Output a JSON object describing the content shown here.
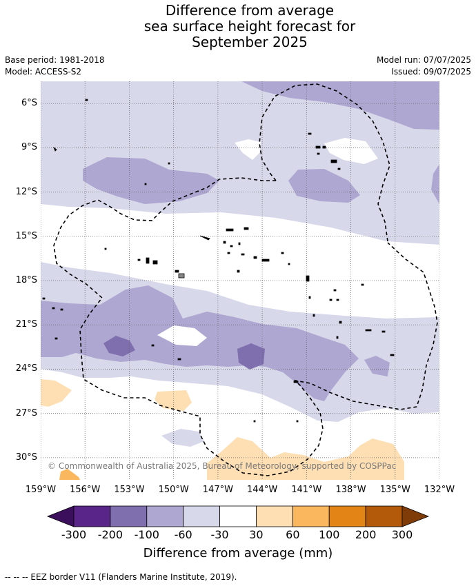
{
  "title": {
    "line1": "Difference from average",
    "line2": "sea surface height forecast for",
    "line3": "September 2025"
  },
  "meta": {
    "base_period": "Base period: 1981-2018",
    "model": "Model: ACCESS-S2",
    "model_run": "Model run: 07/07/2025",
    "issued": "Issued: 09/07/2025"
  },
  "map": {
    "lat_labels": [
      "6°S",
      "9°S",
      "12°S",
      "15°S",
      "18°S",
      "21°S",
      "24°S",
      "27°S",
      "30°S"
    ],
    "lon_labels": [
      "159°W",
      "156°W",
      "153°W",
      "150°W",
      "147°W",
      "144°W",
      "141°W",
      "138°W",
      "135°W",
      "132°W"
    ],
    "copyright": "© Commonwealth of Australia 2025, Bureau of Meteorology, supported by COSPPac"
  },
  "colorbar": {
    "label": "Difference from average (mm)",
    "ticks": [
      "-300",
      "-200",
      "-100",
      "-60",
      "-30",
      "30",
      "60",
      "100",
      "200",
      "300"
    ],
    "colors": {
      "below": "#3b0f5c",
      "c1": "#5a2589",
      "c2": "#7f6fae",
      "c3": "#aea7d1",
      "c4": "#d7d8ea",
      "neutral": "#ffffff",
      "w1": "#fedfb3",
      "w2": "#fbb75e",
      "w3": "#e28516",
      "w4": "#b25a09",
      "above": "#7f3b08"
    }
  },
  "legend": {
    "eez_note": "--  --  -- EEZ border V11 (Flanders Marine Institute, 2019)."
  }
}
